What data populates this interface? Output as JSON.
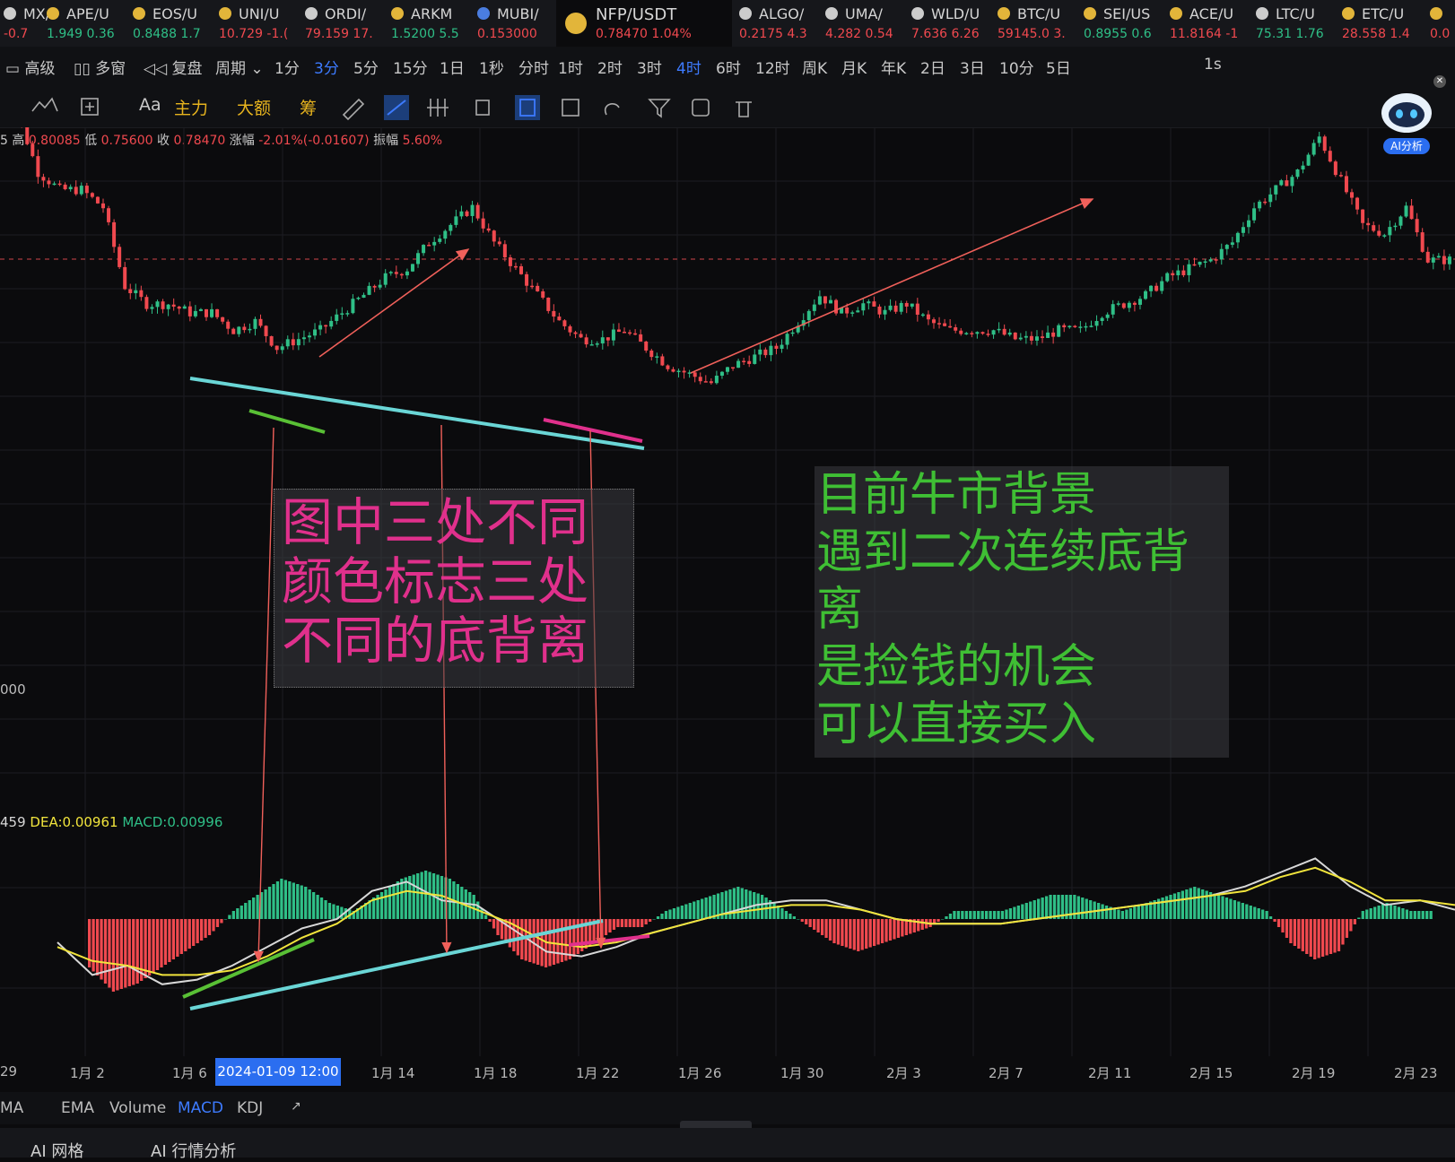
{
  "ticker": [
    {
      "sym": "MX/",
      "price": "-0.7",
      "chg": "",
      "coin": "#ccc",
      "dir": "down"
    },
    {
      "sym": "APE/U",
      "price": "1.949",
      "chg": "0.36",
      "coin": "#e2b53a",
      "dir": "up"
    },
    {
      "sym": "EOS/U",
      "price": "0.8488",
      "chg": "1.7",
      "coin": "#e2b53a",
      "dir": "up"
    },
    {
      "sym": "UNI/U",
      "price": "10.729",
      "chg": "-1.(",
      "coin": "#e2b53a",
      "dir": "down"
    },
    {
      "sym": "ORDI/",
      "price": "79.159",
      "chg": "17.",
      "coin": "#cccccc",
      "dir": "down"
    },
    {
      "sym": "ARKM",
      "price": "1.5200",
      "chg": "5.5",
      "coin": "#e2b53a",
      "dir": "up"
    },
    {
      "sym": "MUBI/",
      "price": "0.153000",
      "chg": "",
      "coin": "#4a7de0",
      "dir": "down"
    },
    {
      "sym": "NFP/USDT",
      "price": "0.78470",
      "chg": "1.04%",
      "coin": "#e2b53a",
      "dir": "down"
    },
    {
      "sym": "ALGO/",
      "price": "0.2175",
      "chg": "4.3",
      "coin": "#cccccc",
      "dir": "down"
    },
    {
      "sym": "UMA/",
      "price": "4.282",
      "chg": "0.54",
      "coin": "#cccccc",
      "dir": "down"
    },
    {
      "sym": "WLD/U",
      "price": "7.636",
      "chg": "6.26",
      "coin": "#cccccc",
      "dir": "down"
    },
    {
      "sym": "BTC/U",
      "price": "59145.0",
      "chg": "3.",
      "coin": "#e2b53a",
      "dir": "down"
    },
    {
      "sym": "SEI/US",
      "price": "0.8955",
      "chg": "0.6",
      "coin": "#e2b53a",
      "dir": "up"
    },
    {
      "sym": "ACE/U",
      "price": "11.8164",
      "chg": "-1",
      "coin": "#e2b53a",
      "dir": "down"
    },
    {
      "sym": "LTC/U",
      "price": "75.31",
      "chg": "1.76",
      "coin": "#cccccc",
      "dir": "up"
    },
    {
      "sym": "ETC/U",
      "price": "28.558",
      "chg": "1.4",
      "coin": "#e2b53a",
      "dir": "down"
    },
    {
      "sym": "",
      "price": "0.0",
      "chg": "",
      "coin": "#e2b53a",
      "dir": "down"
    }
  ],
  "toolbar": {
    "left": [
      "高级",
      "多窗",
      "复盘",
      "周期"
    ],
    "periods": [
      "1分",
      "3分",
      "5分",
      "15分",
      "1日",
      "1秒",
      "分时",
      "1时",
      "2时",
      "3时",
      "4时",
      "6时",
      "12时",
      "周K",
      "月K",
      "年K",
      "2日",
      "3日",
      "10分",
      "5日"
    ],
    "period_selected": [
      "3分",
      "4时"
    ],
    "right_label": "1s",
    "row2_text": [
      "Aa",
      "主力",
      "大额",
      "筹"
    ]
  },
  "ohlc": {
    "high_label": "高",
    "high": "0.80085",
    "low_label": "低",
    "low": "0.75600",
    "close_label": "收",
    "close": "0.78470",
    "chg_label": "涨幅",
    "chg": "-2.01%(-0.01607)",
    "amp_label": "振幅",
    "amp": "5.60%"
  },
  "macd_info": {
    "dif": "459",
    "dea_label": "DEA:",
    "dea": "0.00961",
    "macd_label": "MACD:",
    "macd": "0.00996"
  },
  "y_label": "000",
  "robot_label": "AI分析",
  "x_axis": {
    "labels": [
      "29",
      "1月 2",
      "1月 6",
      "1月 14",
      "1月 18",
      "1月 22",
      "1月 26",
      "1月 30",
      "2月 3",
      "2月 7",
      "2月 11",
      "2月 15",
      "2月 19",
      "2月 23"
    ],
    "highlight": "2024-01-09 12:00"
  },
  "annotations": {
    "box1": [
      "图中三处不同",
      "颜色标志三处",
      "不同的底背离"
    ],
    "box2": [
      "目前牛市背景",
      "遇到二次连续底背",
      "离",
      "是捡钱的机会",
      "可以直接买入"
    ]
  },
  "bottom_tabs": [
    "MA",
    "EMA",
    "Volume",
    "MACD",
    "KDJ"
  ],
  "bottom_tab_selected": "MACD",
  "footer": [
    "AI 网格",
    "AI 行情分析"
  ],
  "colors": {
    "up": "#2fbf87",
    "down": "#f0494f",
    "dif": "#d8d8d8",
    "dea": "#f1e43c",
    "cyan": "#6ad6d6",
    "green": "#59c035",
    "pink": "#e0308c",
    "arrow": "#f0605a"
  },
  "chart_data": {
    "type": "candlestick+macd",
    "pair": "NFP/USDT",
    "interval": "4时",
    "price_path": [
      0.97,
      0.95,
      0.88,
      0.86,
      0.86,
      0.84,
      0.75,
      0.73,
      0.73,
      0.72,
      0.72,
      0.7,
      0.71,
      0.68,
      0.69,
      0.7,
      0.72,
      0.74,
      0.76,
      0.77,
      0.8,
      0.82,
      0.84,
      0.8,
      0.77,
      0.74,
      0.71,
      0.69,
      0.69,
      0.7,
      0.68,
      0.66,
      0.65,
      0.64,
      0.66,
      0.67,
      0.68,
      0.71,
      0.74,
      0.72,
      0.73,
      0.72,
      0.73,
      0.71,
      0.7,
      0.7,
      0.7,
      0.69,
      0.69,
      0.7,
      0.7,
      0.72,
      0.73,
      0.74,
      0.76,
      0.77,
      0.78,
      0.8,
      0.84,
      0.86,
      0.88,
      0.92,
      0.87,
      0.82,
      0.81,
      0.84,
      0.78,
      0.78
    ],
    "macd_hist": [
      -0.006,
      -0.009,
      -0.008,
      -0.006,
      -0.004,
      -0.002,
      0.001,
      0.003,
      0.005,
      0.004,
      0.002,
      0.001,
      0.003,
      0.005,
      0.006,
      0.005,
      0.003,
      -0.002,
      -0.005,
      -0.006,
      -0.005,
      -0.003,
      -0.001,
      -0.001,
      0.001,
      0.002,
      0.003,
      0.004,
      0.003,
      0.001,
      -0.001,
      -0.003,
      -0.004,
      -0.003,
      -0.002,
      -0.001,
      0.001,
      0.001,
      0.001,
      0.002,
      0.003,
      0.003,
      0.002,
      0.001,
      0.002,
      0.003,
      0.004,
      0.003,
      0.002,
      0.001,
      -0.003,
      -0.005,
      -0.004,
      0.001,
      0.002,
      0.001
    ],
    "dif": [
      -0.005,
      -0.012,
      -0.01,
      -0.014,
      -0.013,
      -0.01,
      -0.006,
      -0.002,
      0.0,
      0.006,
      0.008,
      0.004,
      0.003,
      -0.002,
      -0.007,
      -0.008,
      -0.006,
      -0.003,
      -0.001,
      0.001,
      0.003,
      0.004,
      0.004,
      0.002,
      0.0,
      -0.001,
      -0.001,
      -0.001,
      0.0,
      0.001,
      0.002,
      0.003,
      0.004,
      0.005,
      0.007,
      0.01,
      0.013,
      0.007,
      0.003,
      0.004,
      0.002
    ],
    "dea": [
      -0.006,
      -0.009,
      -0.01,
      -0.012,
      -0.012,
      -0.011,
      -0.008,
      -0.004,
      -0.001,
      0.004,
      0.006,
      0.005,
      0.002,
      -0.001,
      -0.005,
      -0.006,
      -0.005,
      -0.003,
      -0.001,
      0.001,
      0.002,
      0.003,
      0.003,
      0.002,
      0.0,
      -0.001,
      -0.001,
      -0.001,
      0.0,
      0.001,
      0.002,
      0.003,
      0.004,
      0.005,
      0.006,
      0.009,
      0.011,
      0.008,
      0.004,
      0.004,
      0.003
    ]
  }
}
